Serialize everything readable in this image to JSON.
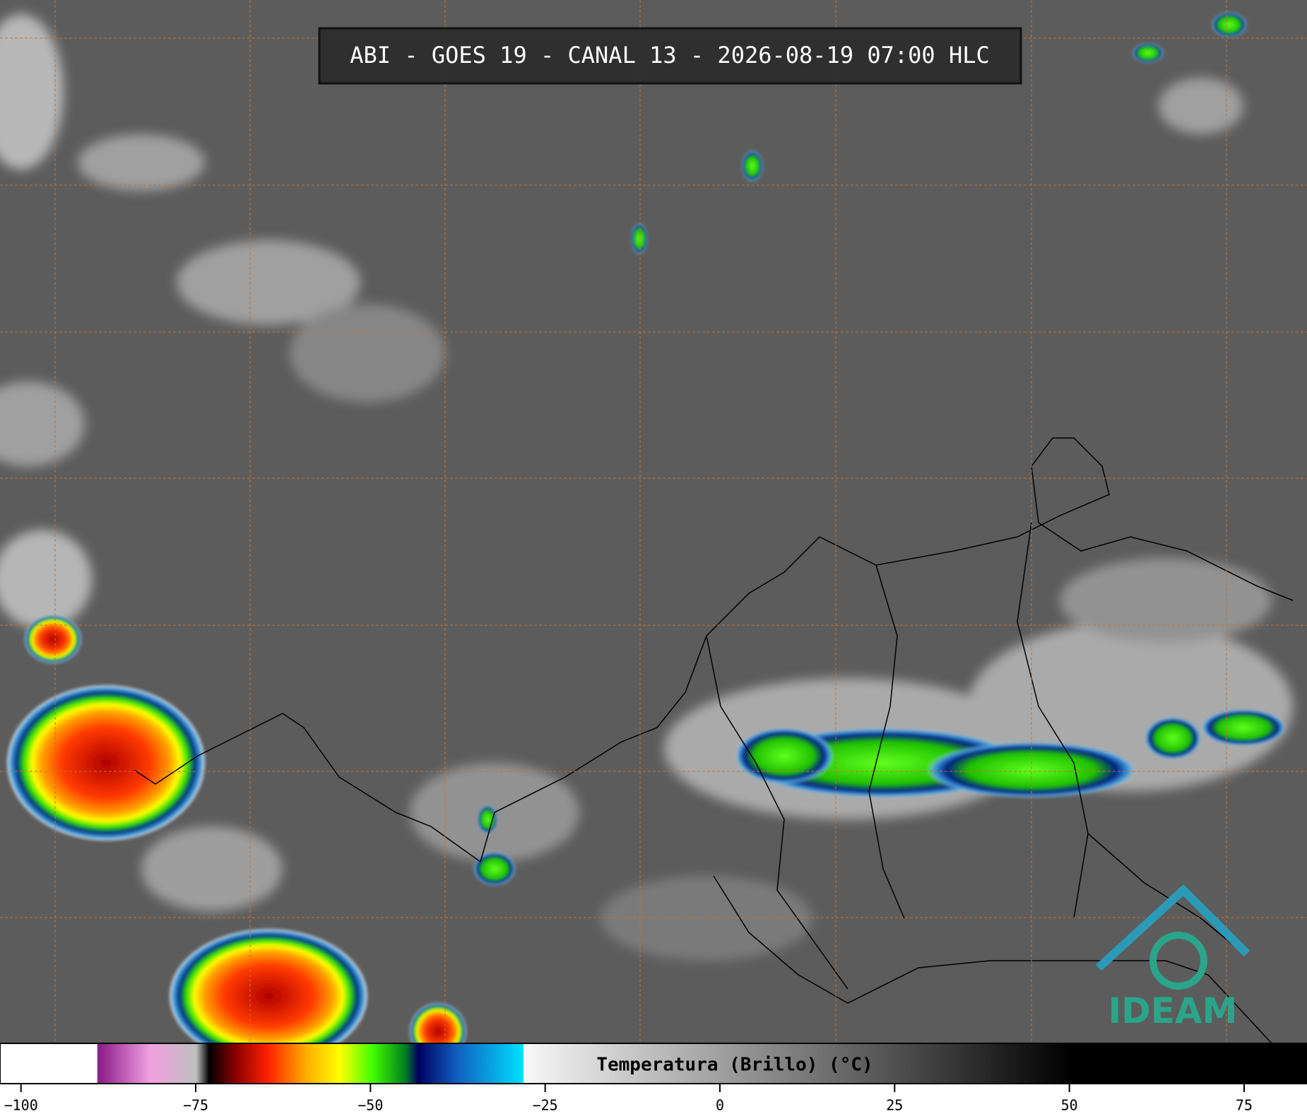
{
  "header": {
    "title": "ABI - GOES 19 - CANAL 13 - 2026-08-19 07:00 HLC"
  },
  "colorbar": {
    "label": "Temperatura (Brillo) (°C)",
    "min": -103,
    "max": 84,
    "ticks": [
      {
        "value": -100,
        "label": "−100"
      },
      {
        "value": -75,
        "label": "−75"
      },
      {
        "value": -50,
        "label": "−50"
      },
      {
        "value": -25,
        "label": "−25"
      },
      0,
      25,
      50,
      75
    ]
  },
  "logo": {
    "text": "IDEAM"
  }
}
